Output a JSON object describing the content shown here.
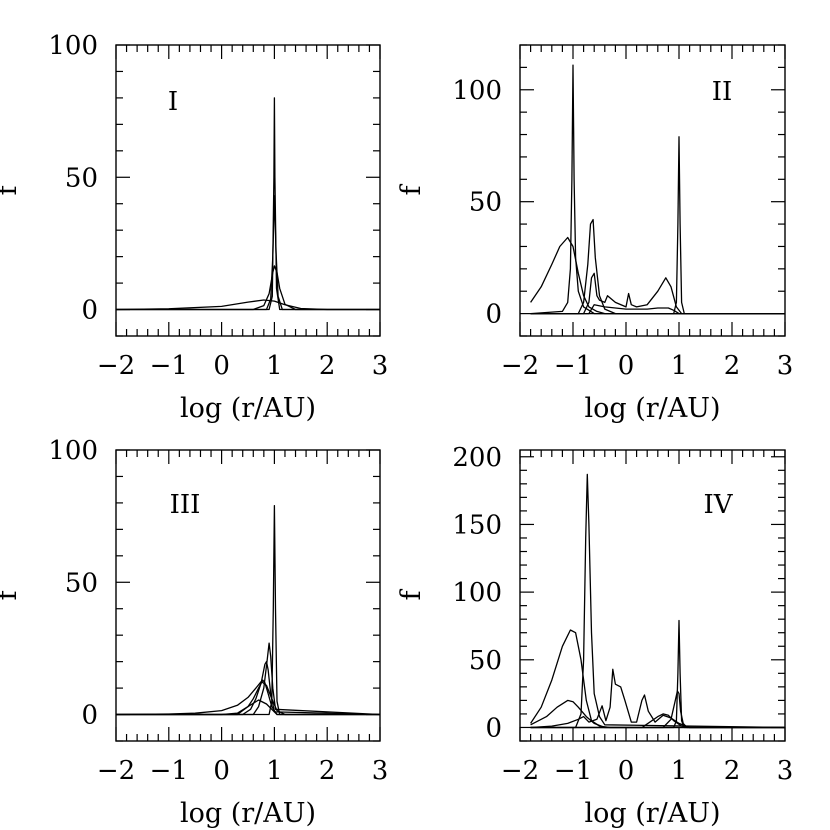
{
  "chart_data": [
    {
      "type": "line",
      "panel_label": "I",
      "xlabel": "log (r/AU)",
      "ylabel": "f",
      "xlim": [
        -2,
        3
      ],
      "ylim": [
        -10,
        100
      ],
      "xticks": [
        -2,
        -1,
        0,
        1,
        2,
        3
      ],
      "xtick_labels": [
        "−2",
        "−1",
        "0",
        "1",
        "2",
        "3"
      ],
      "yticks": [
        0,
        50,
        100
      ],
      "ytick_labels": [
        "0",
        "50",
        "100"
      ],
      "series": [
        {
          "name": "curve-1",
          "x": [
            -2,
            -1,
            0,
            0.5,
            0.8,
            1.0,
            1.2,
            1.5,
            2,
            3
          ],
          "y": [
            0,
            0.3,
            1.2,
            2.8,
            3.6,
            3.2,
            1.8,
            0.4,
            0,
            0
          ]
        },
        {
          "name": "curve-2",
          "x": [
            -2,
            0.6,
            0.8,
            0.9,
            0.97,
            1.0,
            1.05,
            1.1,
            1.2,
            1.4,
            3
          ],
          "y": [
            0,
            0,
            1.5,
            6,
            14,
            16.5,
            14,
            8,
            2,
            0,
            0
          ]
        },
        {
          "name": "curve-3",
          "x": [
            -2,
            0.85,
            0.93,
            0.97,
            1.0,
            1.03,
            1.07,
            1.15,
            3
          ],
          "y": [
            0,
            0,
            4,
            20,
            43,
            22,
            5,
            0,
            0
          ]
        },
        {
          "name": "curve-4",
          "x": [
            -2,
            0.9,
            0.96,
            0.99,
            1.0,
            1.01,
            1.04,
            1.1,
            3
          ],
          "y": [
            0,
            0,
            5,
            50,
            80,
            50,
            8,
            0,
            0
          ]
        }
      ]
    },
    {
      "type": "line",
      "panel_label": "II",
      "xlabel": "log (r/AU)",
      "ylabel": "f",
      "xlim": [
        -2,
        3
      ],
      "ylim": [
        -10,
        120
      ],
      "xticks": [
        -2,
        -1,
        0,
        1,
        2,
        3
      ],
      "xtick_labels": [
        "−2",
        "−1",
        "0",
        "1",
        "2",
        "3"
      ],
      "yticks": [
        0,
        50,
        100
      ],
      "ytick_labels": [
        "0",
        "50",
        "100"
      ],
      "series": [
        {
          "name": "curve-1",
          "x": [
            -1.8,
            -1.6,
            -1.4,
            -1.25,
            -1.1,
            -1.0,
            -0.9,
            -0.8,
            -0.7,
            -0.55,
            -0.4,
            3
          ],
          "y": [
            5,
            12,
            22,
            30,
            34,
            30,
            18,
            8,
            3,
            1,
            0,
            0
          ]
        },
        {
          "name": "curve-2",
          "x": [
            -1.8,
            -1.2,
            -1.1,
            -1.05,
            -1.02,
            -1.0,
            -0.98,
            -0.95,
            -0.9,
            -0.8,
            -0.6,
            3
          ],
          "y": [
            0,
            1,
            5,
            20,
            60,
            111,
            60,
            25,
            10,
            3,
            0,
            0
          ]
        },
        {
          "name": "curve-3",
          "x": [
            -1.8,
            -0.9,
            -0.8,
            -0.72,
            -0.67,
            -0.62,
            -0.58,
            -0.5,
            -0.4,
            -0.2,
            3
          ],
          "y": [
            0,
            0,
            5,
            22,
            40,
            42,
            25,
            8,
            2,
            0,
            0
          ]
        },
        {
          "name": "curve-4",
          "x": [
            -1.8,
            -0.8,
            -0.7,
            -0.65,
            -0.6,
            -0.55,
            -0.5,
            -0.4,
            -0.35,
            -0.2,
            0,
            0.05,
            0.1,
            0.2,
            0.4,
            0.6,
            0.75,
            0.85,
            0.95,
            1.05,
            3
          ],
          "y": [
            0,
            0,
            5,
            16,
            18,
            8,
            6,
            5,
            8,
            5,
            3,
            9,
            4,
            3,
            4,
            10,
            16,
            12,
            3,
            0,
            0
          ]
        },
        {
          "name": "curve-5",
          "x": [
            -1.8,
            -0.7,
            -0.6,
            -0.4,
            -0.2,
            0,
            0.2,
            0.4,
            0.6,
            0.8,
            0.9,
            1.0,
            3
          ],
          "y": [
            0,
            0,
            4,
            3,
            2.5,
            2,
            2,
            2,
            2.5,
            2.5,
            1.5,
            0,
            0
          ]
        },
        {
          "name": "curve-6",
          "x": [
            -1.8,
            0.9,
            0.95,
            0.98,
            1.0,
            1.02,
            1.05,
            1.1,
            3
          ],
          "y": [
            0,
            0,
            5,
            40,
            79,
            40,
            5,
            0,
            0
          ]
        }
      ]
    },
    {
      "type": "line",
      "panel_label": "III",
      "xlabel": "log (r/AU)",
      "ylabel": "f",
      "xlim": [
        -2,
        3
      ],
      "ylim": [
        -10,
        100
      ],
      "xticks": [
        -2,
        -1,
        0,
        1,
        2,
        3
      ],
      "xtick_labels": [
        "−2",
        "−1",
        "0",
        "1",
        "2",
        "3"
      ],
      "yticks": [
        0,
        50,
        100
      ],
      "ytick_labels": [
        "0",
        "50",
        "100"
      ],
      "series": [
        {
          "name": "curve-1",
          "x": [
            -2,
            -1,
            -0.5,
            0,
            0.3,
            0.5,
            0.65,
            0.75,
            0.85,
            0.95,
            1.05,
            1.2,
            3
          ],
          "y": [
            0,
            0.2,
            0.5,
            1.5,
            3.5,
            6.5,
            10,
            12.5,
            11,
            6,
            1.5,
            0,
            0
          ]
        },
        {
          "name": "curve-2",
          "x": [
            -2,
            0,
            0.3,
            0.5,
            0.6,
            0.7,
            0.78,
            0.82,
            0.88,
            0.95,
            1.05,
            3
          ],
          "y": [
            0,
            0,
            0.5,
            3,
            6,
            10,
            13,
            12,
            8,
            3,
            0,
            0
          ]
        },
        {
          "name": "curve-3",
          "x": [
            -2,
            0.4,
            0.55,
            0.65,
            0.75,
            0.82,
            0.85,
            0.88,
            0.93,
            1.0,
            3
          ],
          "y": [
            0,
            0,
            2,
            6,
            12,
            19,
            20,
            17,
            8,
            1,
            0
          ]
        },
        {
          "name": "curve-4",
          "x": [
            -2,
            0.6,
            0.7,
            0.8,
            0.86,
            0.9,
            0.93,
            0.97,
            1.02,
            3
          ],
          "y": [
            0,
            0,
            3,
            10,
            20,
            27,
            22,
            10,
            2,
            0
          ]
        },
        {
          "name": "curve-5",
          "x": [
            -2,
            0.3,
            0.5,
            0.7,
            0.85,
            1.0,
            1.05,
            3
          ],
          "y": [
            0,
            0,
            3,
            5.5,
            4,
            1,
            0,
            0
          ]
        },
        {
          "name": "curve-6",
          "x": [
            -2,
            0.9,
            0.95,
            0.98,
            1.0,
            1.02,
            1.05,
            1.1,
            3
          ],
          "y": [
            0,
            0,
            5,
            40,
            79,
            40,
            5,
            0,
            0
          ]
        }
      ]
    },
    {
      "type": "line",
      "panel_label": "IV",
      "xlabel": "log (r/AU)",
      "ylabel": "f",
      "xlim": [
        -2,
        3
      ],
      "ylim": [
        -10,
        205
      ],
      "xticks": [
        -2,
        -1,
        0,
        1,
        2,
        3
      ],
      "xtick_labels": [
        "−2",
        "−1",
        "0",
        "1",
        "2",
        "3"
      ],
      "yticks": [
        0,
        50,
        100,
        150,
        200
      ],
      "ytick_labels": [
        "0",
        "50",
        "100",
        "150",
        "200"
      ],
      "series": [
        {
          "name": "curve-1",
          "x": [
            -1.8,
            -1.6,
            -1.4,
            -1.2,
            -1.05,
            -0.95,
            -0.85,
            -0.75,
            -0.65,
            -0.5,
            -0.3,
            3
          ],
          "y": [
            3,
            15,
            35,
            60,
            72,
            70,
            50,
            20,
            5,
            1,
            0,
            0
          ]
        },
        {
          "name": "curve-2",
          "x": [
            -1.8,
            -1.5,
            -1.3,
            -1.1,
            -1.0,
            -0.9,
            -0.75,
            -0.6,
            -0.4,
            3
          ],
          "y": [
            2,
            8,
            15,
            20,
            19,
            15,
            8,
            3,
            0,
            0
          ]
        },
        {
          "name": "curve-3",
          "x": [
            -1.8,
            -0.95,
            -0.85,
            -0.8,
            -0.76,
            -0.73,
            -0.7,
            -0.65,
            -0.6,
            -0.5,
            -0.4,
            3
          ],
          "y": [
            0,
            0,
            10,
            50,
            140,
            187,
            150,
            70,
            25,
            8,
            2,
            0
          ]
        },
        {
          "name": "curve-4",
          "x": [
            -1.8,
            -1.4,
            -1.1,
            -0.9,
            -0.8,
            -0.7,
            -0.55,
            -0.45,
            -0.38,
            -0.3,
            -0.25,
            -0.2,
            -0.1,
            -0.02,
            0.1,
            0.2,
            0.3,
            0.35,
            0.42,
            0.55,
            0.7,
            0.85,
            1.0,
            1.2,
            3
          ],
          "y": [
            0,
            1,
            3,
            6,
            8,
            4,
            6,
            16,
            5,
            15,
            43,
            32,
            30,
            20,
            4,
            4,
            20,
            24,
            12,
            4,
            9,
            7,
            3,
            0,
            0
          ]
        },
        {
          "name": "curve-5",
          "x": [
            -1.8,
            0.3,
            0.45,
            0.6,
            0.7,
            0.8,
            0.9,
            1.05,
            1.2,
            3
          ],
          "y": [
            0,
            0,
            4,
            8,
            10,
            9,
            5,
            1,
            0,
            0
          ]
        },
        {
          "name": "curve-6",
          "x": [
            -1.8,
            0.7,
            0.85,
            0.93,
            0.97,
            1.0,
            1.03,
            1.08,
            1.15,
            3
          ],
          "y": [
            0,
            0,
            6,
            20,
            27,
            25,
            12,
            3,
            0,
            0
          ]
        },
        {
          "name": "curve-7",
          "x": [
            -1.8,
            0.9,
            0.95,
            0.98,
            1.0,
            1.02,
            1.05,
            1.1,
            3
          ],
          "y": [
            0,
            0,
            5,
            40,
            79,
            40,
            5,
            0,
            0
          ]
        }
      ]
    }
  ]
}
